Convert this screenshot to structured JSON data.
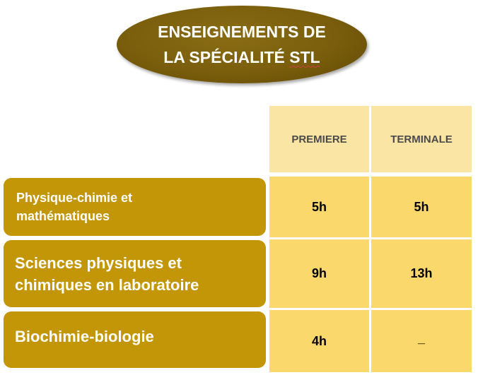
{
  "title": {
    "line1": "ENSEIGNEMENTS  DE",
    "line2_prefix": "LA SPÉCIALITÉ ",
    "line2_suffix": "STL"
  },
  "columns": [
    "PREMIERE",
    "TERMINALE"
  ],
  "rows": [
    {
      "label_line1": "Physique-chimie et",
      "label_line2": "mathématiques",
      "premiere": "5h",
      "terminale": "5h"
    },
    {
      "label_line1": "Sciences physiques et",
      "label_line2": "chimiques en laboratoire",
      "premiere": "9h",
      "terminale": "13h"
    },
    {
      "label_line1": "Biochimie-biologie",
      "label_line2": "",
      "premiere": "4h",
      "terminale": "_"
    }
  ],
  "colors": {
    "title_background": "#7a5e0c",
    "label_background": "#c29607",
    "header_cell": "#fbe5a4",
    "value_cell": "#fbd86c"
  }
}
